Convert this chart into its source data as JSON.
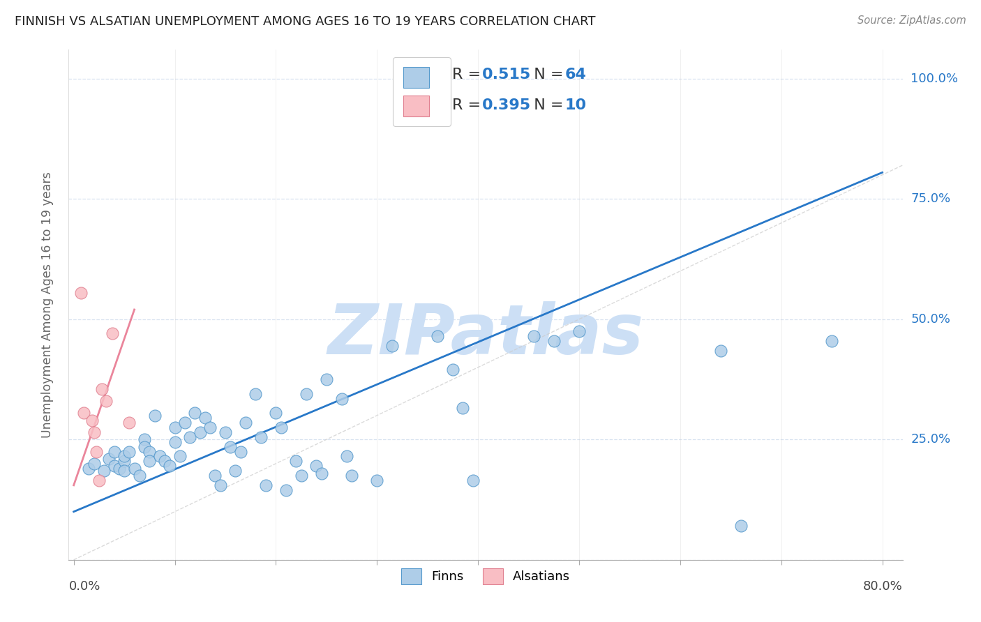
{
  "title": "FINNISH VS ALSATIAN UNEMPLOYMENT AMONG AGES 16 TO 19 YEARS CORRELATION CHART",
  "source": "Source: ZipAtlas.com",
  "ylabel": "Unemployment Among Ages 16 to 19 years",
  "y_ticks": [
    0.0,
    0.25,
    0.5,
    0.75,
    1.0
  ],
  "y_tick_labels_right": [
    "",
    "25.0%",
    "50.0%",
    "75.0%",
    "100.0%"
  ],
  "x_ticks": [
    0.0,
    0.1,
    0.2,
    0.3,
    0.4,
    0.5,
    0.6,
    0.7,
    0.8
  ],
  "xlim": [
    -0.005,
    0.82
  ],
  "ylim": [
    0.0,
    1.06
  ],
  "finn_R": 0.515,
  "finn_N": 64,
  "alsatian_R": 0.395,
  "alsatian_N": 10,
  "finn_color": "#aecde8",
  "alsatian_color": "#f9bec4",
  "finn_edge_color": "#5599cc",
  "alsatian_edge_color": "#e08090",
  "finn_line_color": "#2878c8",
  "alsatian_line_color": "#e87890",
  "diagonal_color": "#cccccc",
  "watermark": "ZIPatlas",
  "watermark_color": "#ccdff5",
  "background_color": "#ffffff",
  "grid_color": "#d8e2f0",
  "title_color": "#222222",
  "legend_r_label_color": "#333333",
  "legend_r_value_color": "#2878c8",
  "legend_n_label_color": "#333333",
  "legend_n_value_color": "#2878c8",
  "ytick_color": "#2878c8",
  "finn_scatter_x": [
    0.015,
    0.02,
    0.03,
    0.035,
    0.04,
    0.04,
    0.045,
    0.05,
    0.05,
    0.05,
    0.055,
    0.06,
    0.065,
    0.07,
    0.07,
    0.075,
    0.075,
    0.08,
    0.085,
    0.09,
    0.095,
    0.1,
    0.1,
    0.105,
    0.11,
    0.115,
    0.12,
    0.125,
    0.13,
    0.135,
    0.14,
    0.145,
    0.15,
    0.155,
    0.16,
    0.165,
    0.17,
    0.18,
    0.185,
    0.19,
    0.2,
    0.205,
    0.21,
    0.22,
    0.225,
    0.23,
    0.24,
    0.245,
    0.25,
    0.265,
    0.27,
    0.275,
    0.3,
    0.315,
    0.36,
    0.375,
    0.385,
    0.395,
    0.455,
    0.475,
    0.5,
    0.64,
    0.66,
    0.75
  ],
  "finn_scatter_y": [
    0.19,
    0.2,
    0.185,
    0.21,
    0.195,
    0.225,
    0.19,
    0.205,
    0.215,
    0.185,
    0.225,
    0.19,
    0.175,
    0.25,
    0.235,
    0.225,
    0.205,
    0.3,
    0.215,
    0.205,
    0.195,
    0.275,
    0.245,
    0.215,
    0.285,
    0.255,
    0.305,
    0.265,
    0.295,
    0.275,
    0.175,
    0.155,
    0.265,
    0.235,
    0.185,
    0.225,
    0.285,
    0.345,
    0.255,
    0.155,
    0.305,
    0.275,
    0.145,
    0.205,
    0.175,
    0.345,
    0.195,
    0.18,
    0.375,
    0.335,
    0.215,
    0.175,
    0.165,
    0.445,
    0.465,
    0.395,
    0.315,
    0.165,
    0.465,
    0.455,
    0.475,
    0.435,
    0.07,
    0.455
  ],
  "alsatian_scatter_x": [
    0.007,
    0.01,
    0.018,
    0.02,
    0.022,
    0.025,
    0.028,
    0.032,
    0.038,
    0.055
  ],
  "alsatian_scatter_y": [
    0.555,
    0.305,
    0.29,
    0.265,
    0.225,
    0.165,
    0.355,
    0.33,
    0.47,
    0.285
  ],
  "finn_line_x0": 0.0,
  "finn_line_x1": 0.8,
  "finn_line_y0": 0.1,
  "finn_line_y1": 0.805,
  "alsatian_line_x0": 0.0,
  "alsatian_line_x1": 0.06,
  "alsatian_line_y0": 0.155,
  "alsatian_line_y1": 0.52
}
